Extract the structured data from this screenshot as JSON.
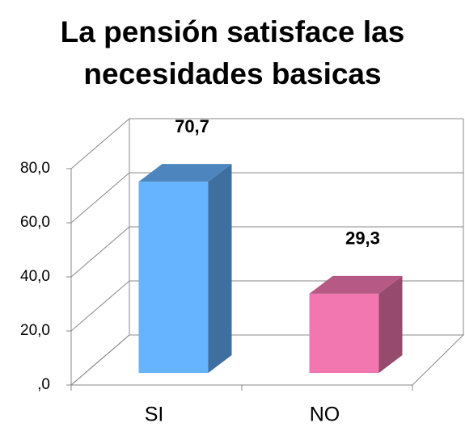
{
  "chart_data": {
    "type": "bar3d",
    "title": "La pensión satisface las necesidades basicas",
    "categories": [
      "SI",
      "NO"
    ],
    "values": [
      70.7,
      29.3
    ],
    "value_labels": [
      "70,7",
      "29,3"
    ],
    "colors": [
      "#66b3ff",
      "#f277b0"
    ],
    "ylim": [
      0,
      80
    ],
    "yticks": [
      {
        "value": 0,
        "label": ",0"
      },
      {
        "value": 20,
        "label": "20,0"
      },
      {
        "value": 40,
        "label": "40,0"
      },
      {
        "value": 60,
        "label": "60,0"
      },
      {
        "value": 80,
        "label": "80,0"
      }
    ],
    "grid": true
  }
}
